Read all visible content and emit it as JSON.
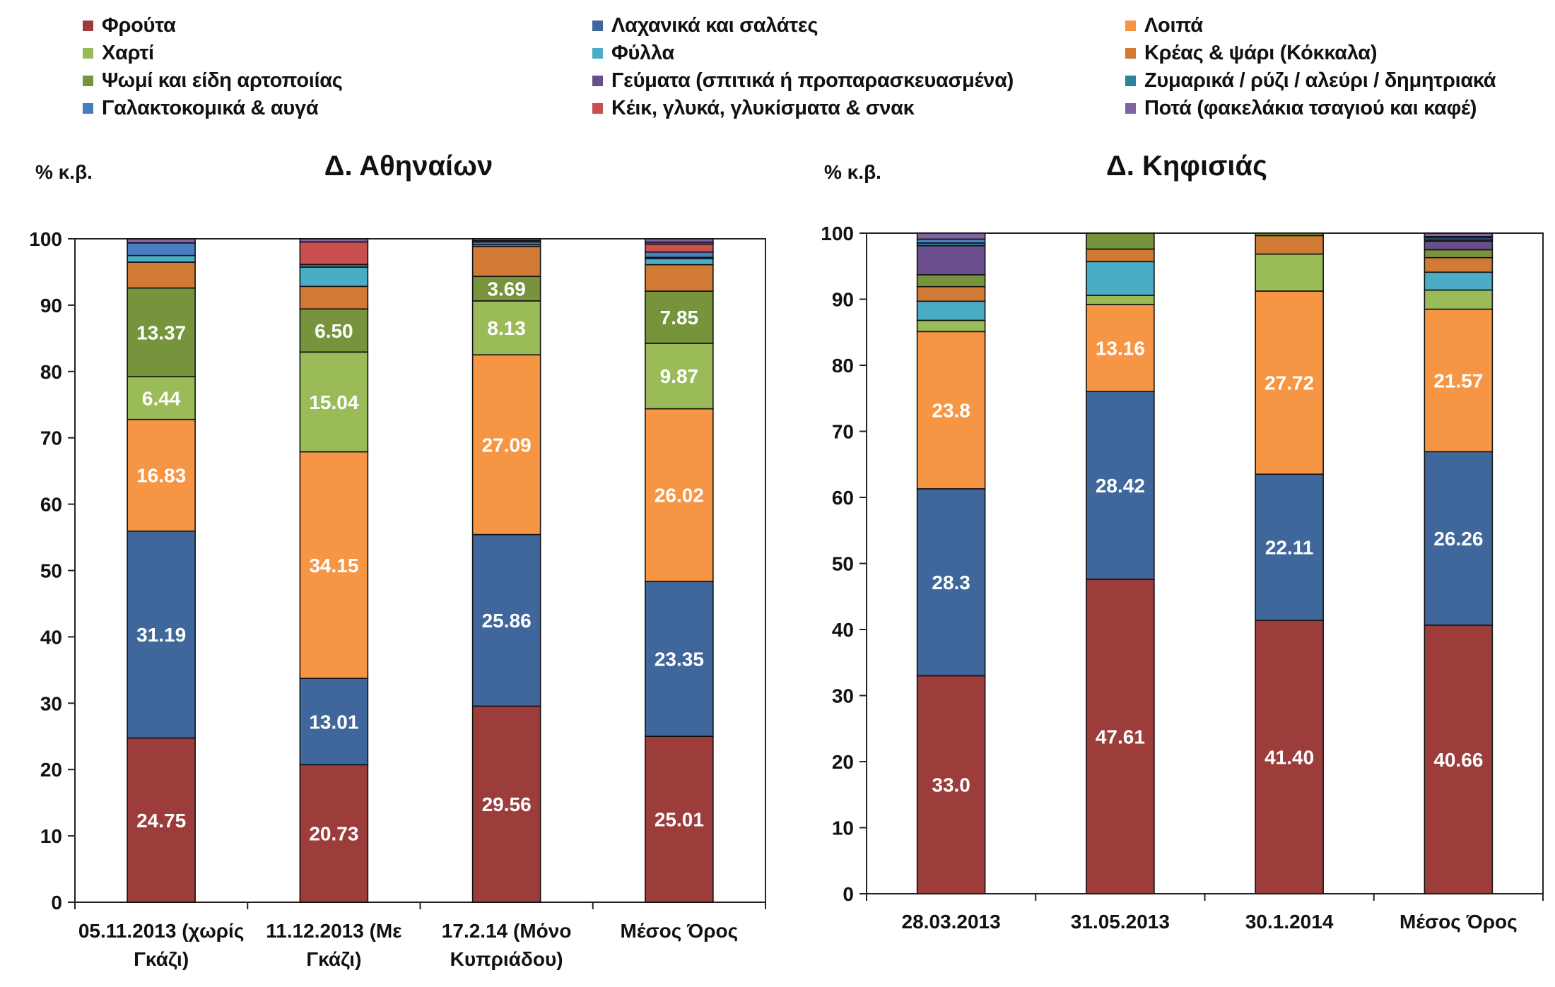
{
  "legend": {
    "items": [
      {
        "label": "Φρούτα",
        "color": "#9C3D3B"
      },
      {
        "label": "Λαχανικά και σαλάτες",
        "color": "#3F679B"
      },
      {
        "label": "Λοιπά",
        "color": "#F69644"
      },
      {
        "label": "Χαρτί",
        "color": "#9BBB59"
      },
      {
        "label": "Φύλλα",
        "color": "#4BACC6"
      },
      {
        "label": "Κρέας & ψάρι (Κόκκαλα)",
        "color": "#D07A35"
      },
      {
        "label": "Ψωμί και είδη αρτοποιίας",
        "color": "#77933C"
      },
      {
        "label": "Γεύματα (σπιτικά ή προπαρασκευασμένα)",
        "color": "#6A4E8C"
      },
      {
        "label": "Ζυμαρικά / ρύζι / αλεύρι / δημητριακά",
        "color": "#2F8196"
      },
      {
        "label": "Γαλακτοκομικά & αυγά",
        "color": "#4A7DC0"
      },
      {
        "label": "Κέικ, γλυκά, γλυκίσματα & σνακ",
        "color": "#C9504F"
      },
      {
        "label": "Ποτά (φακελάκια τσαγιού και καφέ)",
        "color": "#8064A2"
      }
    ]
  },
  "chart_data": [
    {
      "type": "bar",
      "stacked": true,
      "title": "Δ. Αθηναίων",
      "ylabel": "% κ.β.",
      "ylim": [
        0,
        100
      ],
      "yticks": [
        "0",
        "10",
        "20",
        "30",
        "40",
        "50",
        "60",
        "70",
        "80",
        "90",
        "100"
      ],
      "categories": [
        [
          "05.11.2013 (χωρίς",
          "Γκάζι)"
        ],
        [
          "11.12.2013 (Με",
          "Γκάζι)"
        ],
        [
          "17.2.14 (Μόνο",
          "Κυπριάδου)"
        ],
        [
          "Μέσος Όρος"
        ]
      ],
      "series": [
        {
          "name": "Φρούτα",
          "color": "#9C3D3B",
          "values": [
            24.75,
            20.73,
            29.56,
            25.01
          ],
          "labels": [
            "24.75",
            "20.73",
            "29.56",
            "25.01"
          ]
        },
        {
          "name": "Λαχανικά και σαλάτες",
          "color": "#3F679B",
          "values": [
            31.19,
            13.01,
            25.86,
            23.35
          ],
          "labels": [
            "31.19",
            "13.01",
            "25.86",
            "23.35"
          ]
        },
        {
          "name": "Λοιπά",
          "color": "#F69644",
          "values": [
            16.83,
            34.15,
            27.09,
            26.02
          ],
          "labels": [
            "16.83",
            "34.15",
            "27.09",
            "26.02"
          ]
        },
        {
          "name": "Χαρτί",
          "color": "#9BBB59",
          "values": [
            6.44,
            15.04,
            8.13,
            9.87
          ],
          "labels": [
            "6.44",
            "15.04",
            "8.13",
            "9.87"
          ]
        },
        {
          "name": "Ψωμί και είδη αρτοποιίας",
          "color": "#77933C",
          "values": [
            13.37,
            6.5,
            3.69,
            7.85
          ],
          "labels": [
            "13.37",
            "6.50",
            "3.69",
            "7.85"
          ]
        },
        {
          "name": "Κρέας & ψάρι (Κόκκαλα)",
          "color": "#D07A35",
          "values": [
            3.9,
            3.4,
            4.5,
            4.0
          ],
          "labels": [
            "",
            "",
            "",
            ""
          ]
        },
        {
          "name": "Φύλλα",
          "color": "#4BACC6",
          "values": [
            1.0,
            2.9,
            0.0,
            0.9
          ],
          "labels": [
            "",
            "",
            "",
            ""
          ]
        },
        {
          "name": "Ζυμαρικά / ρύζι / αλεύρι / δημητριακά",
          "color": "#2F8196",
          "values": [
            0.0,
            0.4,
            0.3,
            0.2
          ],
          "labels": [
            "",
            "",
            "",
            ""
          ]
        },
        {
          "name": "Γαλακτοκομικά & αυγά",
          "color": "#4A7DC0",
          "values": [
            1.9,
            0.0,
            0.4,
            0.8
          ],
          "labels": [
            "",
            "",
            "",
            ""
          ]
        },
        {
          "name": "Κέικ, γλυκά, γλυκίσματα & σνακ",
          "color": "#C9504F",
          "values": [
            0.0,
            3.4,
            0.0,
            1.2
          ],
          "labels": [
            "",
            "",
            "",
            ""
          ]
        },
        {
          "name": "Γεύματα (σπιτικά ή προπαρασκευασμένα)",
          "color": "#6A4E8C",
          "values": [
            0.0,
            0.0,
            0.2,
            0.3
          ],
          "labels": [
            "",
            "",
            "",
            ""
          ]
        },
        {
          "name": "Ποτά (φακελάκια τσαγιού και καφέ)",
          "color": "#8064A2",
          "values": [
            0.6,
            0.5,
            0.3,
            0.5
          ],
          "labels": [
            "",
            "",
            "",
            ""
          ]
        }
      ]
    },
    {
      "type": "bar",
      "stacked": true,
      "title": "Δ. Κηφισιάς",
      "ylabel": "% κ.β.",
      "ylim": [
        0,
        100
      ],
      "yticks": [
        "0",
        "10",
        "20",
        "30",
        "40",
        "50",
        "60",
        "70",
        "80",
        "90",
        "100"
      ],
      "categories": [
        [
          "28.03.2013"
        ],
        [
          "31.05.2013"
        ],
        [
          "30.1.2014"
        ],
        [
          "Μέσος Όρος"
        ]
      ],
      "series": [
        {
          "name": "Φρούτα",
          "color": "#9C3D3B",
          "values": [
            33.0,
            47.61,
            41.4,
            40.66
          ],
          "labels": [
            "33.0",
            "47.61",
            "41.40",
            "40.66"
          ]
        },
        {
          "name": "Λαχανικά και σαλάτες",
          "color": "#3F679B",
          "values": [
            28.3,
            28.42,
            22.11,
            26.26
          ],
          "labels": [
            "28.3",
            "28.42",
            "22.11",
            "26.26"
          ]
        },
        {
          "name": "Λοιπά",
          "color": "#F69644",
          "values": [
            23.8,
            13.16,
            27.72,
            21.57
          ],
          "labels": [
            "23.8",
            "13.16",
            "27.72",
            "21.57"
          ]
        },
        {
          "name": "Χαρτί",
          "color": "#9BBB59",
          "values": [
            1.7,
            1.4,
            5.6,
            2.9
          ],
          "labels": [
            "",
            "",
            "",
            ""
          ]
        },
        {
          "name": "Φύλλα",
          "color": "#4BACC6",
          "values": [
            2.9,
            5.1,
            0.0,
            2.7
          ],
          "labels": [
            "",
            "",
            "",
            ""
          ]
        },
        {
          "name": "Κρέας & ψάρι (Κόκκαλα)",
          "color": "#D07A35",
          "values": [
            2.2,
            1.9,
            2.8,
            2.2
          ],
          "labels": [
            "",
            "",
            "",
            ""
          ]
        },
        {
          "name": "Ψωμί και είδη αρτοποιίας",
          "color": "#77933C",
          "values": [
            1.8,
            2.4,
            0.4,
            1.2
          ],
          "labels": [
            "",
            "",
            "",
            ""
          ]
        },
        {
          "name": "Γεύματα (σπιτικά ή προπαρασκευασμένα)",
          "color": "#6A4E8C",
          "values": [
            4.4,
            0.0,
            0.0,
            1.3
          ],
          "labels": [
            "",
            "",
            "",
            ""
          ]
        },
        {
          "name": "Ζυμαρικά / ρύζι / αλεύρι / δημητριακά",
          "color": "#2F8196",
          "values": [
            0.4,
            0.0,
            0.0,
            0.2
          ],
          "labels": [
            "",
            "",
            "",
            ""
          ]
        },
        {
          "name": "Γαλακτοκομικά & αυγά",
          "color": "#4A7DC0",
          "values": [
            0.6,
            0.0,
            0.0,
            0.3
          ],
          "labels": [
            "",
            "",
            "",
            ""
          ]
        },
        {
          "name": "Κέικ, γλυκά, γλυκίσματα & σνακ",
          "color": "#C9504F",
          "values": [
            0.0,
            0.0,
            0.0,
            0.2
          ],
          "labels": [
            "",
            "",
            "",
            ""
          ]
        },
        {
          "name": "Ποτά (φακελάκια τσαγιού και καφέ)",
          "color": "#8064A2",
          "values": [
            0.9,
            0.0,
            0.0,
            0.5
          ],
          "labels": [
            "",
            "",
            "",
            ""
          ]
        }
      ]
    }
  ]
}
